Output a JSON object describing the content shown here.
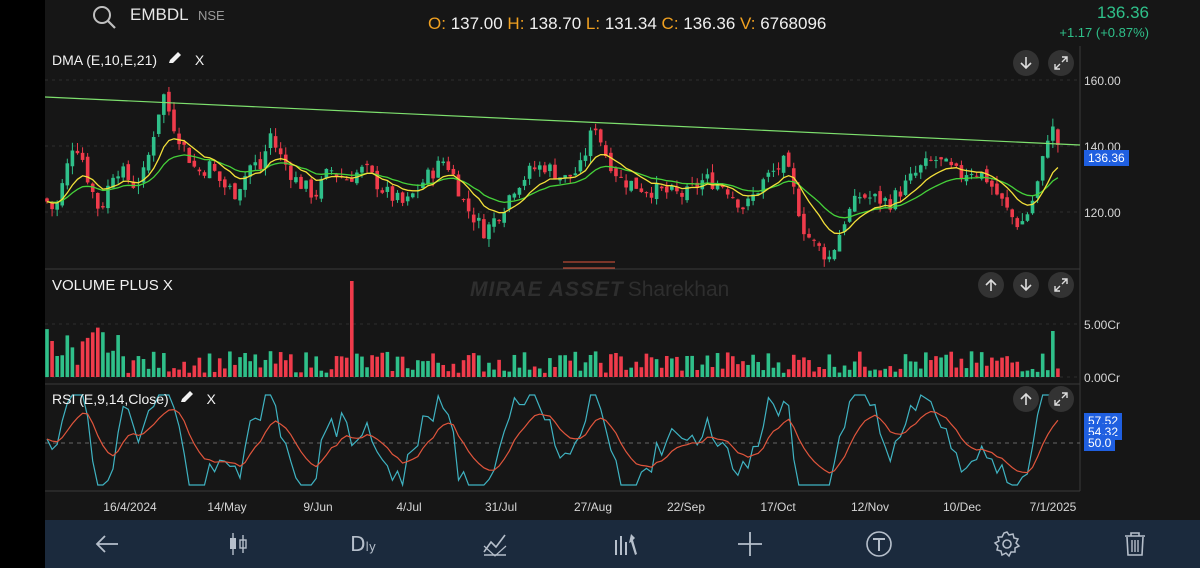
{
  "header": {
    "symbol": "EMBDL",
    "exchange": "NSE",
    "ohlcv": {
      "o_label": "O:",
      "o": "137.00",
      "h_label": "H:",
      "h": "138.70",
      "l_label": "L:",
      "l": "131.34",
      "c_label": "C:",
      "c": "136.36",
      "v_label": "V:",
      "v": "6768096"
    },
    "ltp": "136.36",
    "change": "+1.17 (+0.87%)"
  },
  "panels": {
    "price": {
      "label": "DMA (E,10,E,21)",
      "close_label": "X",
      "last_price_badge": "136.36",
      "y_ticks": [
        "160.00",
        "140.00",
        "120.00"
      ]
    },
    "volume": {
      "label": "VOLUME PLUS X",
      "y_ticks": [
        "5.00Cr",
        "0.00Cr"
      ]
    },
    "rsi": {
      "label": "RSI (E,9,14,Close)",
      "close_label": "X",
      "badges": [
        "57.52",
        "54.32",
        "50.0"
      ]
    }
  },
  "watermark": {
    "part1": "MIRAE ASSET",
    "part2": "Sharekhan"
  },
  "x_ticks": [
    "16/4/2024",
    "14/May",
    "9/Jun",
    "4/Jul",
    "31/Jul",
    "27/Aug",
    "22/Sep",
    "17/Oct",
    "12/Nov",
    "10/Dec",
    "7/1/2025"
  ],
  "toolbar": {
    "timeframe": "D",
    "timeframe_sub": "ly"
  },
  "colors": {
    "up": "#2fc08a",
    "down": "#ef3b4b",
    "ema10": "#f3e03a",
    "ema21": "#45d13a",
    "trendline": "#7ee06e",
    "rsi": "#3fb3c2",
    "rsi_ma": "#e0553c",
    "badge": "#1f5fe0"
  },
  "icons": [
    "search-icon",
    "pencil-icon",
    "arrow-down-icon",
    "arrow-up-icon",
    "expand-icon",
    "back-arrow-icon",
    "candlestick-icon",
    "draw-tool-icon",
    "indicator-icon",
    "crosshair-icon",
    "text-tool-icon",
    "gear-icon",
    "trash-icon"
  ]
}
